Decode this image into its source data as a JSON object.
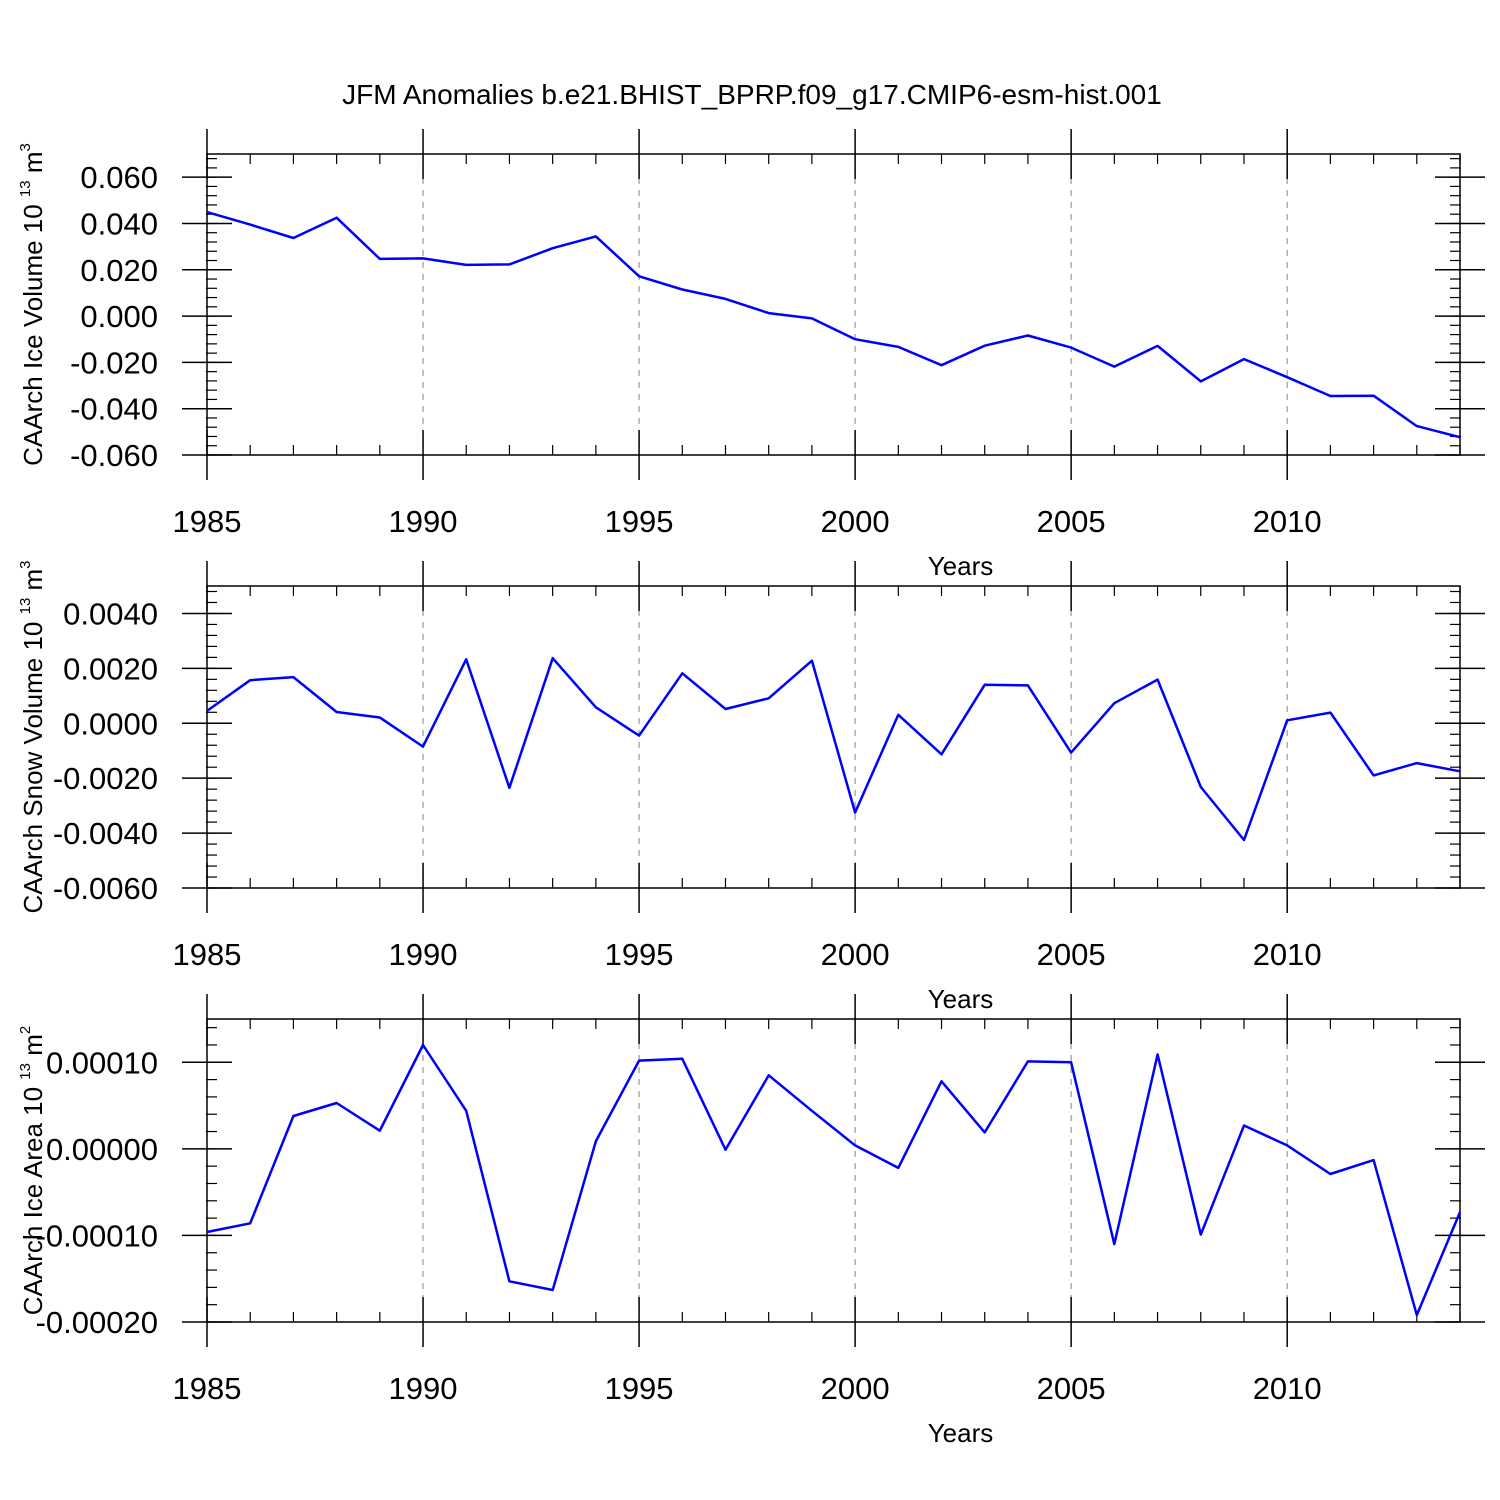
{
  "title": "JFM Anomalies b.e21.BHIST_BPRP.f09_g17.CMIP6-esm-hist.001",
  "colors": {
    "line": "#0000ff",
    "frame": "#000000",
    "grid": "#999999"
  },
  "chart_data": [
    {
      "type": "line",
      "name": "ice-volume",
      "ylabel": "CAArch Ice Volume 10",
      "ylabel_exp": "13",
      "ylabel_unit": "m",
      "ylabel_unit_exp": "3",
      "xlabel": "Years",
      "xlim": [
        1985,
        2014
      ],
      "ylim": [
        -0.06,
        0.07
      ],
      "x_ticks": [
        1985,
        1990,
        1995,
        2000,
        2005,
        2010
      ],
      "y_ticks": [
        -0.06,
        -0.04,
        -0.02,
        0.0,
        0.02,
        0.04,
        0.06
      ],
      "y_tick_labels": [
        "-0.060",
        "-0.040",
        "-0.020",
        "0.000",
        "0.020",
        "0.040",
        "0.060"
      ],
      "grid": "dashed vertical lines at major x ticks",
      "x": [
        1985,
        1986,
        1987,
        1988,
        1989,
        1990,
        1991,
        1992,
        1993,
        1994,
        1995,
        1996,
        1997,
        1998,
        1999,
        2000,
        2001,
        2002,
        2003,
        2004,
        2005,
        2006,
        2007,
        2008,
        2009,
        2010,
        2011,
        2012,
        2013,
        2014
      ],
      "y": [
        0.0449,
        0.0395,
        0.0337,
        0.0425,
        0.0247,
        0.0249,
        0.0221,
        0.0223,
        0.0293,
        0.0344,
        0.0172,
        0.0115,
        0.0074,
        0.0013,
        -0.001,
        -0.01,
        -0.0133,
        -0.0212,
        -0.0128,
        -0.0084,
        -0.0136,
        -0.0218,
        -0.0129,
        -0.0282,
        -0.0186,
        -0.0264,
        -0.0345,
        -0.0344,
        -0.0475,
        -0.0523
      ]
    },
    {
      "type": "line",
      "name": "snow-volume",
      "ylabel": "CAArch Snow Volume 10",
      "ylabel_exp": "13",
      "ylabel_unit": "m",
      "ylabel_unit_exp": "3",
      "xlabel": "Years",
      "xlim": [
        1985,
        2014
      ],
      "ylim": [
        -0.006,
        0.005
      ],
      "x_ticks": [
        1985,
        1990,
        1995,
        2000,
        2005,
        2010
      ],
      "y_ticks": [
        -0.006,
        -0.004,
        -0.002,
        0.0,
        0.002,
        0.004
      ],
      "y_tick_labels": [
        "-0.0060",
        "-0.0040",
        "-0.0020",
        "0.0000",
        "0.0020",
        "0.0040"
      ],
      "grid": "dashed vertical lines at major x ticks",
      "x": [
        1985,
        1986,
        1987,
        1988,
        1989,
        1990,
        1991,
        1992,
        1993,
        1994,
        1995,
        1996,
        1997,
        1998,
        1999,
        2000,
        2001,
        2002,
        2003,
        2004,
        2005,
        2006,
        2007,
        2008,
        2009,
        2010,
        2011,
        2012,
        2013,
        2014
      ],
      "y": [
        0.00045,
        0.00157,
        0.00168,
        0.00041,
        0.00021,
        -0.00085,
        0.00233,
        -0.00235,
        0.00237,
        0.00058,
        -0.00045,
        0.00182,
        0.00052,
        0.00091,
        0.00228,
        -0.00325,
        0.00031,
        -0.00113,
        0.0014,
        0.00138,
        -0.00107,
        0.00073,
        0.00159,
        -0.00232,
        -0.00425,
        0.00011,
        0.00039,
        -0.0019,
        -0.00145,
        -0.00175
      ]
    },
    {
      "type": "line",
      "name": "ice-area",
      "ylabel": "CAArch Ice Area 10",
      "ylabel_exp": "13",
      "ylabel_unit": "m",
      "ylabel_unit_exp": "2",
      "xlabel": "Years",
      "xlim": [
        1985,
        2014
      ],
      "ylim": [
        -0.0002,
        0.00015
      ],
      "x_ticks": [
        1985,
        1990,
        1995,
        2000,
        2005,
        2010
      ],
      "y_ticks": [
        -0.0002,
        -0.0001,
        0.0,
        0.0001
      ],
      "y_tick_labels": [
        "-0.00020",
        "-0.00010",
        "0.00000",
        "0.00010"
      ],
      "grid": "dashed vertical lines at major x ticks",
      "x": [
        1985,
        1986,
        1987,
        1988,
        1989,
        1990,
        1991,
        1992,
        1993,
        1994,
        1995,
        1996,
        1997,
        1998,
        1999,
        2000,
        2001,
        2002,
        2003,
        2004,
        2005,
        2006,
        2007,
        2008,
        2009,
        2010,
        2011,
        2012,
        2013,
        2014
      ],
      "y": [
        -9.6e-05,
        -8.6e-05,
        3.8e-05,
        5.3e-05,
        2.1e-05,
        0.00012,
        4.4e-05,
        -0.000153,
        -0.000163,
        9e-06,
        0.000102,
        0.000104,
        -1e-06,
        8.5e-05,
        4.4e-05,
        4e-06,
        -2.2e-05,
        7.8e-05,
        1.9e-05,
        0.000101,
        0.0001,
        -0.00011,
        0.000109,
        -9.9e-05,
        2.7e-05,
        4e-06,
        -2.9e-05,
        -1.3e-05,
        -0.000192,
        -7.3e-05
      ]
    }
  ]
}
